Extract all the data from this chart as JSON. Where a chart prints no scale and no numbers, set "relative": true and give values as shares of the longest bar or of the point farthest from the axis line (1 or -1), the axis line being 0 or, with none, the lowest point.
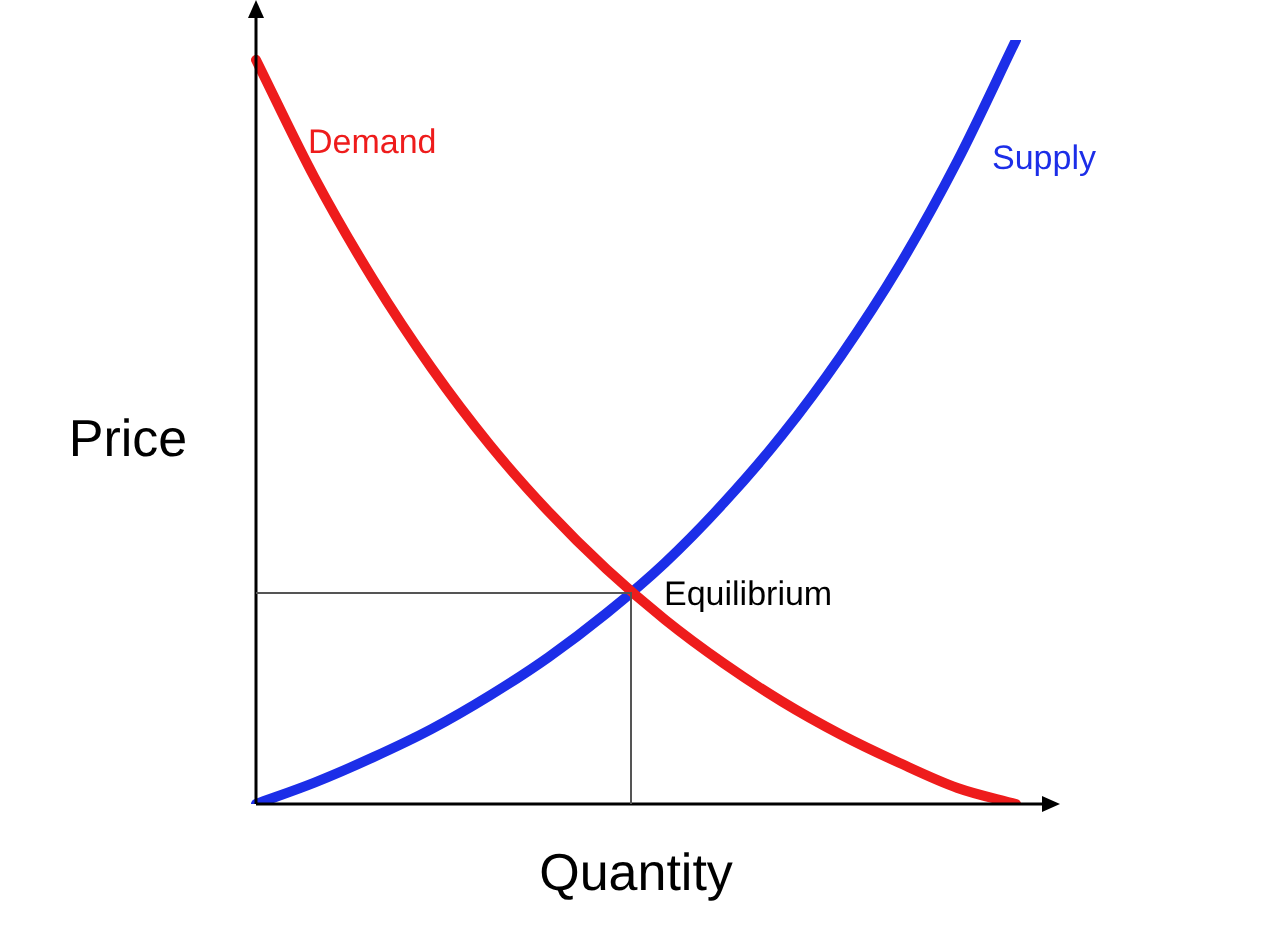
{
  "chart_data": {
    "type": "line",
    "relative": true,
    "xlabel": "Quantity",
    "ylabel": "Price",
    "tick_labels": false,
    "legend": false,
    "marker": "none",
    "line_style": "solid",
    "categories": [
      null,
      null,
      null,
      null,
      null,
      null,
      null,
      null,
      null,
      null,
      null,
      null,
      null,
      null
    ],
    "series": [
      {
        "name": "Demand",
        "color": "#ee1c1c",
        "values": [
          0.974,
          0.82,
          0.687,
          0.571,
          0.47,
          0.383,
          0.307,
          0.241,
          0.184,
          0.134,
          0.091,
          0.054,
          0.021,
          0
        ]
      },
      {
        "name": "Supply",
        "color": "#1c2ee8",
        "values": [
          0,
          0.028,
          0.061,
          0.098,
          0.142,
          0.192,
          0.25,
          0.316,
          0.394,
          0.483,
          0.586,
          0.704,
          0.842,
          1
        ]
      }
    ],
    "annotations": [
      "Equilibrium"
    ]
  }
}
